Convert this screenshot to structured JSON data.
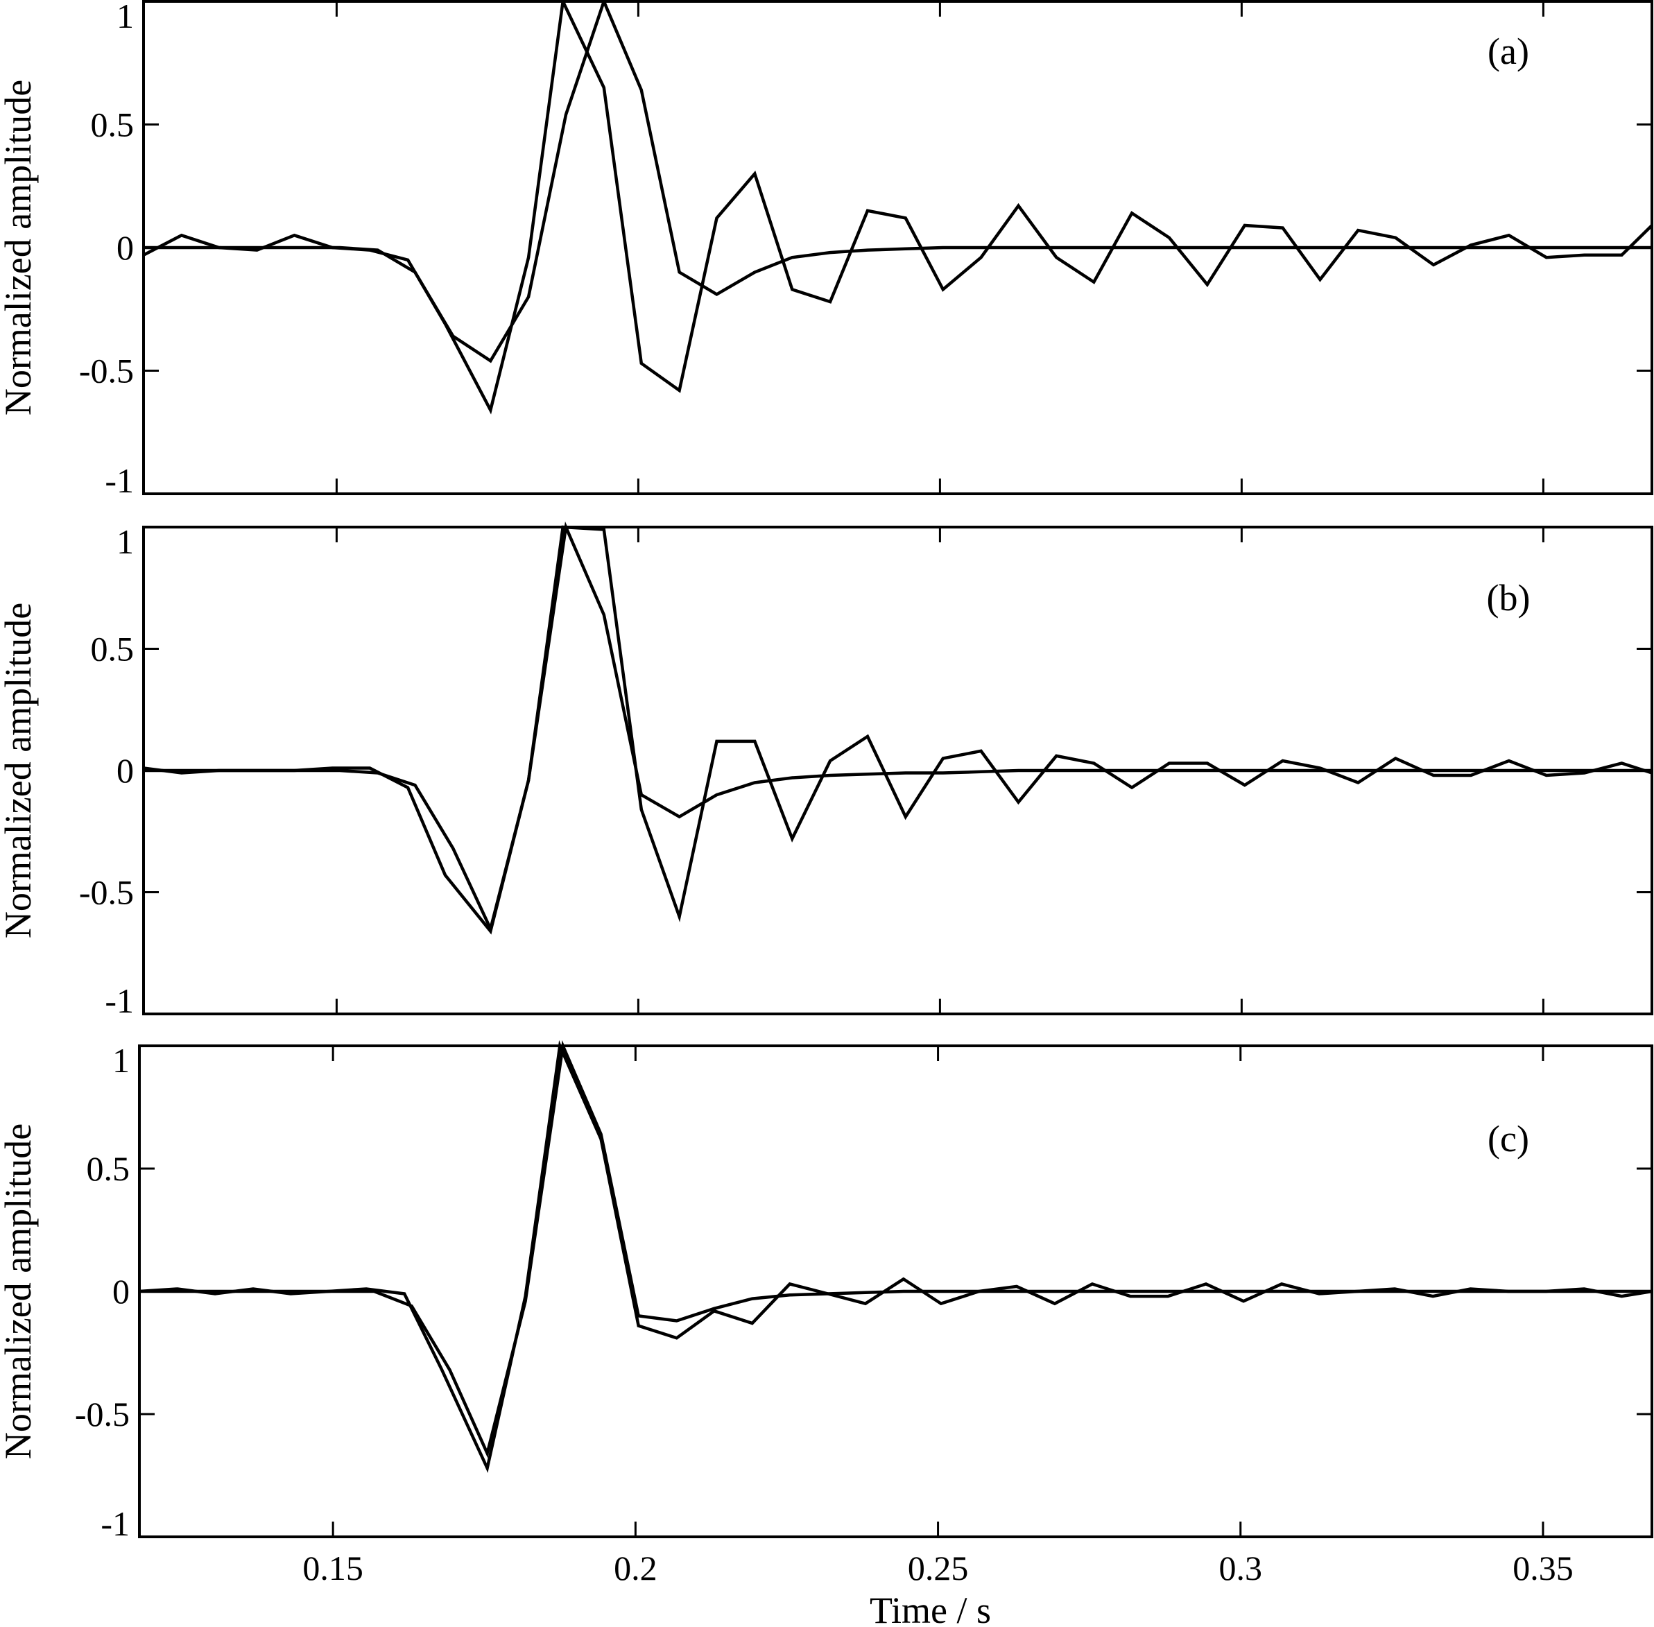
{
  "chart_data": [
    {
      "type": "line",
      "annotation": "(a)",
      "ylabel": "Normalized amplitude",
      "xlabel": "",
      "xlim": [
        0.118,
        0.368
      ],
      "ylim": [
        -1,
        1
      ],
      "xticks": [
        0.15,
        0.2,
        0.25,
        0.3,
        0.35
      ],
      "yticks": [
        1,
        0.5,
        0,
        -0.5,
        -1
      ],
      "ytick_labels": [
        "1",
        "0.5",
        "0",
        "-0.5",
        "-1"
      ],
      "series": [
        {
          "x": [
            0.118,
            0.1255,
            0.1318,
            0.138,
            0.1443,
            0.1505,
            0.1568,
            0.163,
            0.1693,
            0.1755,
            0.1818,
            0.188,
            0.1943,
            0.2005,
            0.2068,
            0.213,
            0.2193,
            0.2255,
            0.2318,
            0.238,
            0.2443,
            0.2505,
            0.2568,
            0.263,
            0.2693,
            0.2755,
            0.2818,
            0.288,
            0.2943,
            0.3005,
            0.3068,
            0.313,
            0.3193,
            0.3255,
            0.3318,
            0.338,
            0.3443,
            0.3505,
            0.3568,
            0.363,
            0.368
          ],
          "y": [
            0.0,
            0.0,
            0.0,
            0.0,
            0.0,
            0.0,
            -0.01,
            -0.1,
            -0.36,
            -0.46,
            -0.2,
            0.54,
            1.0,
            0.64,
            -0.1,
            -0.19,
            -0.1,
            -0.04,
            -0.02,
            -0.01,
            -0.005,
            0.0,
            0.0,
            0.0,
            0.0,
            0.0,
            0.0,
            0.0,
            0.0,
            0.0,
            0.0,
            0.0,
            0.0,
            0.0,
            0.0,
            0.0,
            0.0,
            0.0,
            0.0,
            0.0,
            0.0
          ]
        },
        {
          "x": [
            0.118,
            0.1243,
            0.1305,
            0.1368,
            0.143,
            0.1493,
            0.1555,
            0.1618,
            0.168,
            0.1755,
            0.1818,
            0.1875,
            0.1943,
            0.2005,
            0.2068,
            0.213,
            0.2193,
            0.2255,
            0.2318,
            0.238,
            0.2443,
            0.2505,
            0.2568,
            0.263,
            0.2693,
            0.2755,
            0.2818,
            0.288,
            0.2943,
            0.3005,
            0.3068,
            0.313,
            0.3193,
            0.3255,
            0.3318,
            0.338,
            0.3443,
            0.3505,
            0.3568,
            0.363,
            0.368
          ],
          "y": [
            -0.03,
            0.05,
            0.0,
            -0.01,
            0.05,
            0.0,
            -0.01,
            -0.05,
            -0.31,
            -0.66,
            -0.04,
            1.0,
            0.65,
            -0.47,
            -0.58,
            0.12,
            0.3,
            -0.17,
            -0.22,
            0.15,
            0.12,
            -0.17,
            -0.04,
            0.17,
            -0.04,
            -0.14,
            0.14,
            0.04,
            -0.15,
            0.09,
            0.08,
            -0.13,
            0.07,
            0.04,
            -0.07,
            0.01,
            0.05,
            -0.04,
            -0.03,
            -0.03,
            0.09
          ]
        }
      ]
    },
    {
      "type": "line",
      "annotation": "(b)",
      "ylabel": "Normalized amplitude",
      "xlabel": "",
      "xlim": [
        0.118,
        0.368
      ],
      "ylim": [
        -1,
        1
      ],
      "xticks": [
        0.15,
        0.2,
        0.25,
        0.3,
        0.35
      ],
      "yticks": [
        1,
        0.5,
        0,
        -0.5,
        -1
      ],
      "ytick_labels": [
        "1",
        "0.5",
        "0",
        "-0.5",
        "-1"
      ],
      "series": [
        {
          "x": [
            0.118,
            0.1255,
            0.1318,
            0.138,
            0.1443,
            0.1505,
            0.1568,
            0.163,
            0.1693,
            0.1755,
            0.1818,
            0.188,
            0.1943,
            0.2005,
            0.2068,
            0.213,
            0.2193,
            0.2255,
            0.2318,
            0.238,
            0.2443,
            0.2505,
            0.2568,
            0.263,
            0.2693,
            0.2755,
            0.2818,
            0.288,
            0.2943,
            0.3005,
            0.3068,
            0.313,
            0.3193,
            0.3255,
            0.3318,
            0.338,
            0.3443,
            0.3505,
            0.3568,
            0.363,
            0.368
          ],
          "y": [
            0.0,
            0.0,
            0.0,
            0.0,
            0.0,
            0.0,
            -0.01,
            -0.06,
            -0.32,
            -0.65,
            -0.04,
            1.0,
            0.64,
            -0.1,
            -0.19,
            -0.1,
            -0.05,
            -0.03,
            -0.02,
            -0.015,
            -0.01,
            -0.01,
            -0.005,
            0.0,
            0.0,
            0.0,
            0.0,
            0.0,
            0.0,
            0.0,
            0.0,
            0.0,
            0.0,
            0.0,
            0.0,
            0.0,
            0.0,
            0.0,
            0.0,
            0.0,
            0.0
          ]
        },
        {
          "x": [
            0.118,
            0.1243,
            0.1305,
            0.1368,
            0.143,
            0.1493,
            0.1555,
            0.1618,
            0.168,
            0.1755,
            0.1818,
            0.1875,
            0.1943,
            0.2005,
            0.2068,
            0.213,
            0.2193,
            0.2255,
            0.2318,
            0.238,
            0.2443,
            0.2505,
            0.2568,
            0.263,
            0.2693,
            0.2755,
            0.2818,
            0.288,
            0.2943,
            0.3005,
            0.3068,
            0.313,
            0.3193,
            0.3255,
            0.3318,
            0.338,
            0.3443,
            0.3505,
            0.3568,
            0.363,
            0.368
          ],
          "y": [
            0.01,
            -0.01,
            0.0,
            0.0,
            0.0,
            0.01,
            0.01,
            -0.07,
            -0.43,
            -0.66,
            -0.04,
            1.0,
            0.99,
            -0.16,
            -0.6,
            0.12,
            0.12,
            -0.28,
            0.04,
            0.14,
            -0.19,
            0.05,
            0.08,
            -0.13,
            0.06,
            0.03,
            -0.07,
            0.03,
            0.03,
            -0.06,
            0.04,
            0.01,
            -0.05,
            0.05,
            -0.02,
            -0.02,
            0.04,
            -0.02,
            -0.01,
            0.03,
            -0.01
          ]
        }
      ]
    },
    {
      "type": "line",
      "annotation": "(c)",
      "ylabel": "Normalized amplitude",
      "xlabel": "Time / s",
      "xlim": [
        0.118,
        0.368
      ],
      "ylim": [
        -1,
        1
      ],
      "xticks": [
        0.15,
        0.2,
        0.25,
        0.3,
        0.35
      ],
      "xtick_labels": [
        "0.15",
        "0.2",
        "0.25",
        "0.3",
        "0.35"
      ],
      "yticks": [
        1,
        0.5,
        0,
        -0.5,
        -1
      ],
      "ytick_labels": [
        "1",
        "0.5",
        "0",
        "-0.5",
        "-1"
      ],
      "series": [
        {
          "x": [
            0.118,
            0.1255,
            0.1318,
            0.138,
            0.1443,
            0.1505,
            0.1568,
            0.163,
            0.1693,
            0.1755,
            0.1818,
            0.188,
            0.1943,
            0.2005,
            0.2068,
            0.213,
            0.2193,
            0.2255,
            0.2318,
            0.238,
            0.2443,
            0.2505,
            0.2568,
            0.263,
            0.2693,
            0.2755,
            0.2818,
            0.288,
            0.2943,
            0.3005,
            0.3068,
            0.313,
            0.3193,
            0.3255,
            0.3318,
            0.338,
            0.3443,
            0.3505,
            0.3568,
            0.363,
            0.368
          ],
          "y": [
            0.0,
            0.0,
            0.0,
            0.0,
            0.0,
            0.0,
            0.0,
            -0.06,
            -0.32,
            -0.66,
            -0.04,
            1.0,
            0.64,
            -0.1,
            -0.12,
            -0.07,
            -0.03,
            -0.015,
            -0.01,
            -0.005,
            0.0,
            0.0,
            0.0,
            0.0,
            0.0,
            0.0,
            0.0,
            0.0,
            0.0,
            0.0,
            0.0,
            0.0,
            0.0,
            0.0,
            0.0,
            0.0,
            0.0,
            0.0,
            0.0,
            0.0,
            0.0
          ]
        },
        {
          "x": [
            0.118,
            0.1243,
            0.1305,
            0.1368,
            0.143,
            0.1493,
            0.1555,
            0.1618,
            0.168,
            0.1755,
            0.1818,
            0.1875,
            0.1943,
            0.2005,
            0.2068,
            0.213,
            0.2193,
            0.2255,
            0.2318,
            0.238,
            0.2443,
            0.2505,
            0.2568,
            0.263,
            0.2693,
            0.2755,
            0.2818,
            0.288,
            0.2943,
            0.3005,
            0.3068,
            0.313,
            0.3193,
            0.3255,
            0.3318,
            0.338,
            0.3443,
            0.3505,
            0.3568,
            0.363,
            0.368
          ],
          "y": [
            0.0,
            0.01,
            -0.01,
            0.01,
            -0.01,
            0.0,
            0.01,
            -0.01,
            -0.32,
            -0.72,
            -0.02,
            1.0,
            0.62,
            -0.14,
            -0.19,
            -0.08,
            -0.13,
            0.03,
            -0.01,
            -0.05,
            0.05,
            -0.05,
            0.0,
            0.02,
            -0.05,
            0.03,
            -0.02,
            -0.02,
            0.03,
            -0.04,
            0.03,
            -0.01,
            0.0,
            0.01,
            -0.02,
            0.01,
            0.0,
            0.0,
            0.01,
            -0.02,
            0.0
          ]
        }
      ]
    }
  ]
}
